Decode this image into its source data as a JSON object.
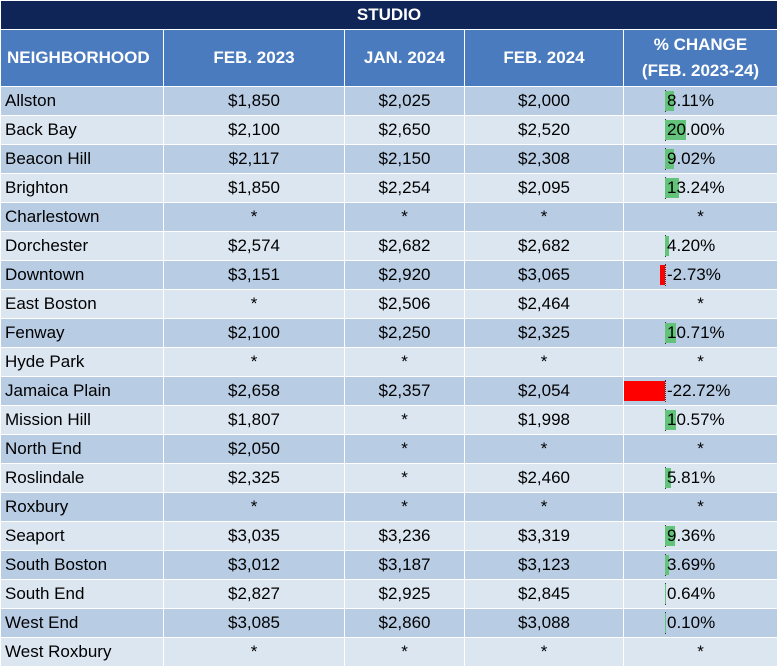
{
  "title": "STUDIO",
  "headers": {
    "neighborhood": "NEIGHBORHOOD",
    "feb2023": "FEB. 2023",
    "jan2024": "JAN. 2024",
    "feb2024": "FEB. 2024",
    "change_line1": "% CHANGE",
    "change_line2": "(FEB. 2023-24)"
  },
  "colors": {
    "title_bg": "#0f2557",
    "header_bg": "#4a7bbf",
    "row_dark": "#b8cce4",
    "row_light": "#dce6f1",
    "positive_bar": "#63c37a",
    "negative_bar": "#ff0000"
  },
  "rows": [
    {
      "name": "Allston",
      "feb2023": "$1,850",
      "jan2024": "$2,025",
      "feb2024": "$2,000",
      "change": "8.11%",
      "change_value": 8.11
    },
    {
      "name": "Back Bay",
      "feb2023": "$2,100",
      "jan2024": "$2,650",
      "feb2024": "$2,520",
      "change": "20.00%",
      "change_value": 20.0
    },
    {
      "name": "Beacon Hill",
      "feb2023": "$2,117",
      "jan2024": "$2,150",
      "feb2024": "$2,308",
      "change": "9.02%",
      "change_value": 9.02
    },
    {
      "name": "Brighton",
      "feb2023": "$1,850",
      "jan2024": "$2,254",
      "feb2024": "$2,095",
      "change": "13.24%",
      "change_value": 13.24
    },
    {
      "name": "Charlestown",
      "feb2023": "*",
      "jan2024": "*",
      "feb2024": "*",
      "change": "*",
      "change_value": null
    },
    {
      "name": "Dorchester",
      "feb2023": "$2,574",
      "jan2024": "$2,682",
      "feb2024": "$2,682",
      "change": "4.20%",
      "change_value": 4.2
    },
    {
      "name": "Downtown",
      "feb2023": "$3,151",
      "jan2024": "$2,920",
      "feb2024": "$3,065",
      "change": "-2.73%",
      "change_value": -2.73
    },
    {
      "name": "East Boston",
      "feb2023": "*",
      "jan2024": "$2,506",
      "feb2024": "$2,464",
      "change": "*",
      "change_value": null
    },
    {
      "name": "Fenway",
      "feb2023": "$2,100",
      "jan2024": "$2,250",
      "feb2024": "$2,325",
      "change": "10.71%",
      "change_value": 10.71
    },
    {
      "name": "Hyde Park",
      "feb2023": "*",
      "jan2024": "*",
      "feb2024": "*",
      "change": "*",
      "change_value": null
    },
    {
      "name": "Jamaica Plain",
      "feb2023": "$2,658",
      "jan2024": "$2,357",
      "feb2024": "$2,054",
      "change": "-22.72%",
      "change_value": -22.72
    },
    {
      "name": "Mission Hill",
      "feb2023": "$1,807",
      "jan2024": "*",
      "feb2024": "$1,998",
      "change": "10.57%",
      "change_value": 10.57
    },
    {
      "name": "North End",
      "feb2023": "$2,050",
      "jan2024": "*",
      "feb2024": "*",
      "change": "*",
      "change_value": null
    },
    {
      "name": "Roslindale",
      "feb2023": "$2,325",
      "jan2024": "*",
      "feb2024": "$2,460",
      "change": "5.81%",
      "change_value": 5.81
    },
    {
      "name": "Roxbury",
      "feb2023": "*",
      "jan2024": "*",
      "feb2024": "*",
      "change": "*",
      "change_value": null
    },
    {
      "name": "Seaport",
      "feb2023": "$3,035",
      "jan2024": "$3,236",
      "feb2024": "$3,319",
      "change": "9.36%",
      "change_value": 9.36
    },
    {
      "name": "South Boston",
      "feb2023": "$3,012",
      "jan2024": "$3,187",
      "feb2024": "$3,123",
      "change": "3.69%",
      "change_value": 3.69
    },
    {
      "name": "South End",
      "feb2023": "$2,827",
      "jan2024": "$2,925",
      "feb2024": "$2,845",
      "change": "0.64%",
      "change_value": 0.64
    },
    {
      "name": "West End",
      "feb2023": "$3,085",
      "jan2024": "$2,860",
      "feb2024": "$3,088",
      "change": "0.10%",
      "change_value": 0.1
    },
    {
      "name": "West Roxbury",
      "feb2023": "*",
      "jan2024": "*",
      "feb2024": "*",
      "change": "*",
      "change_value": null
    }
  ]
}
